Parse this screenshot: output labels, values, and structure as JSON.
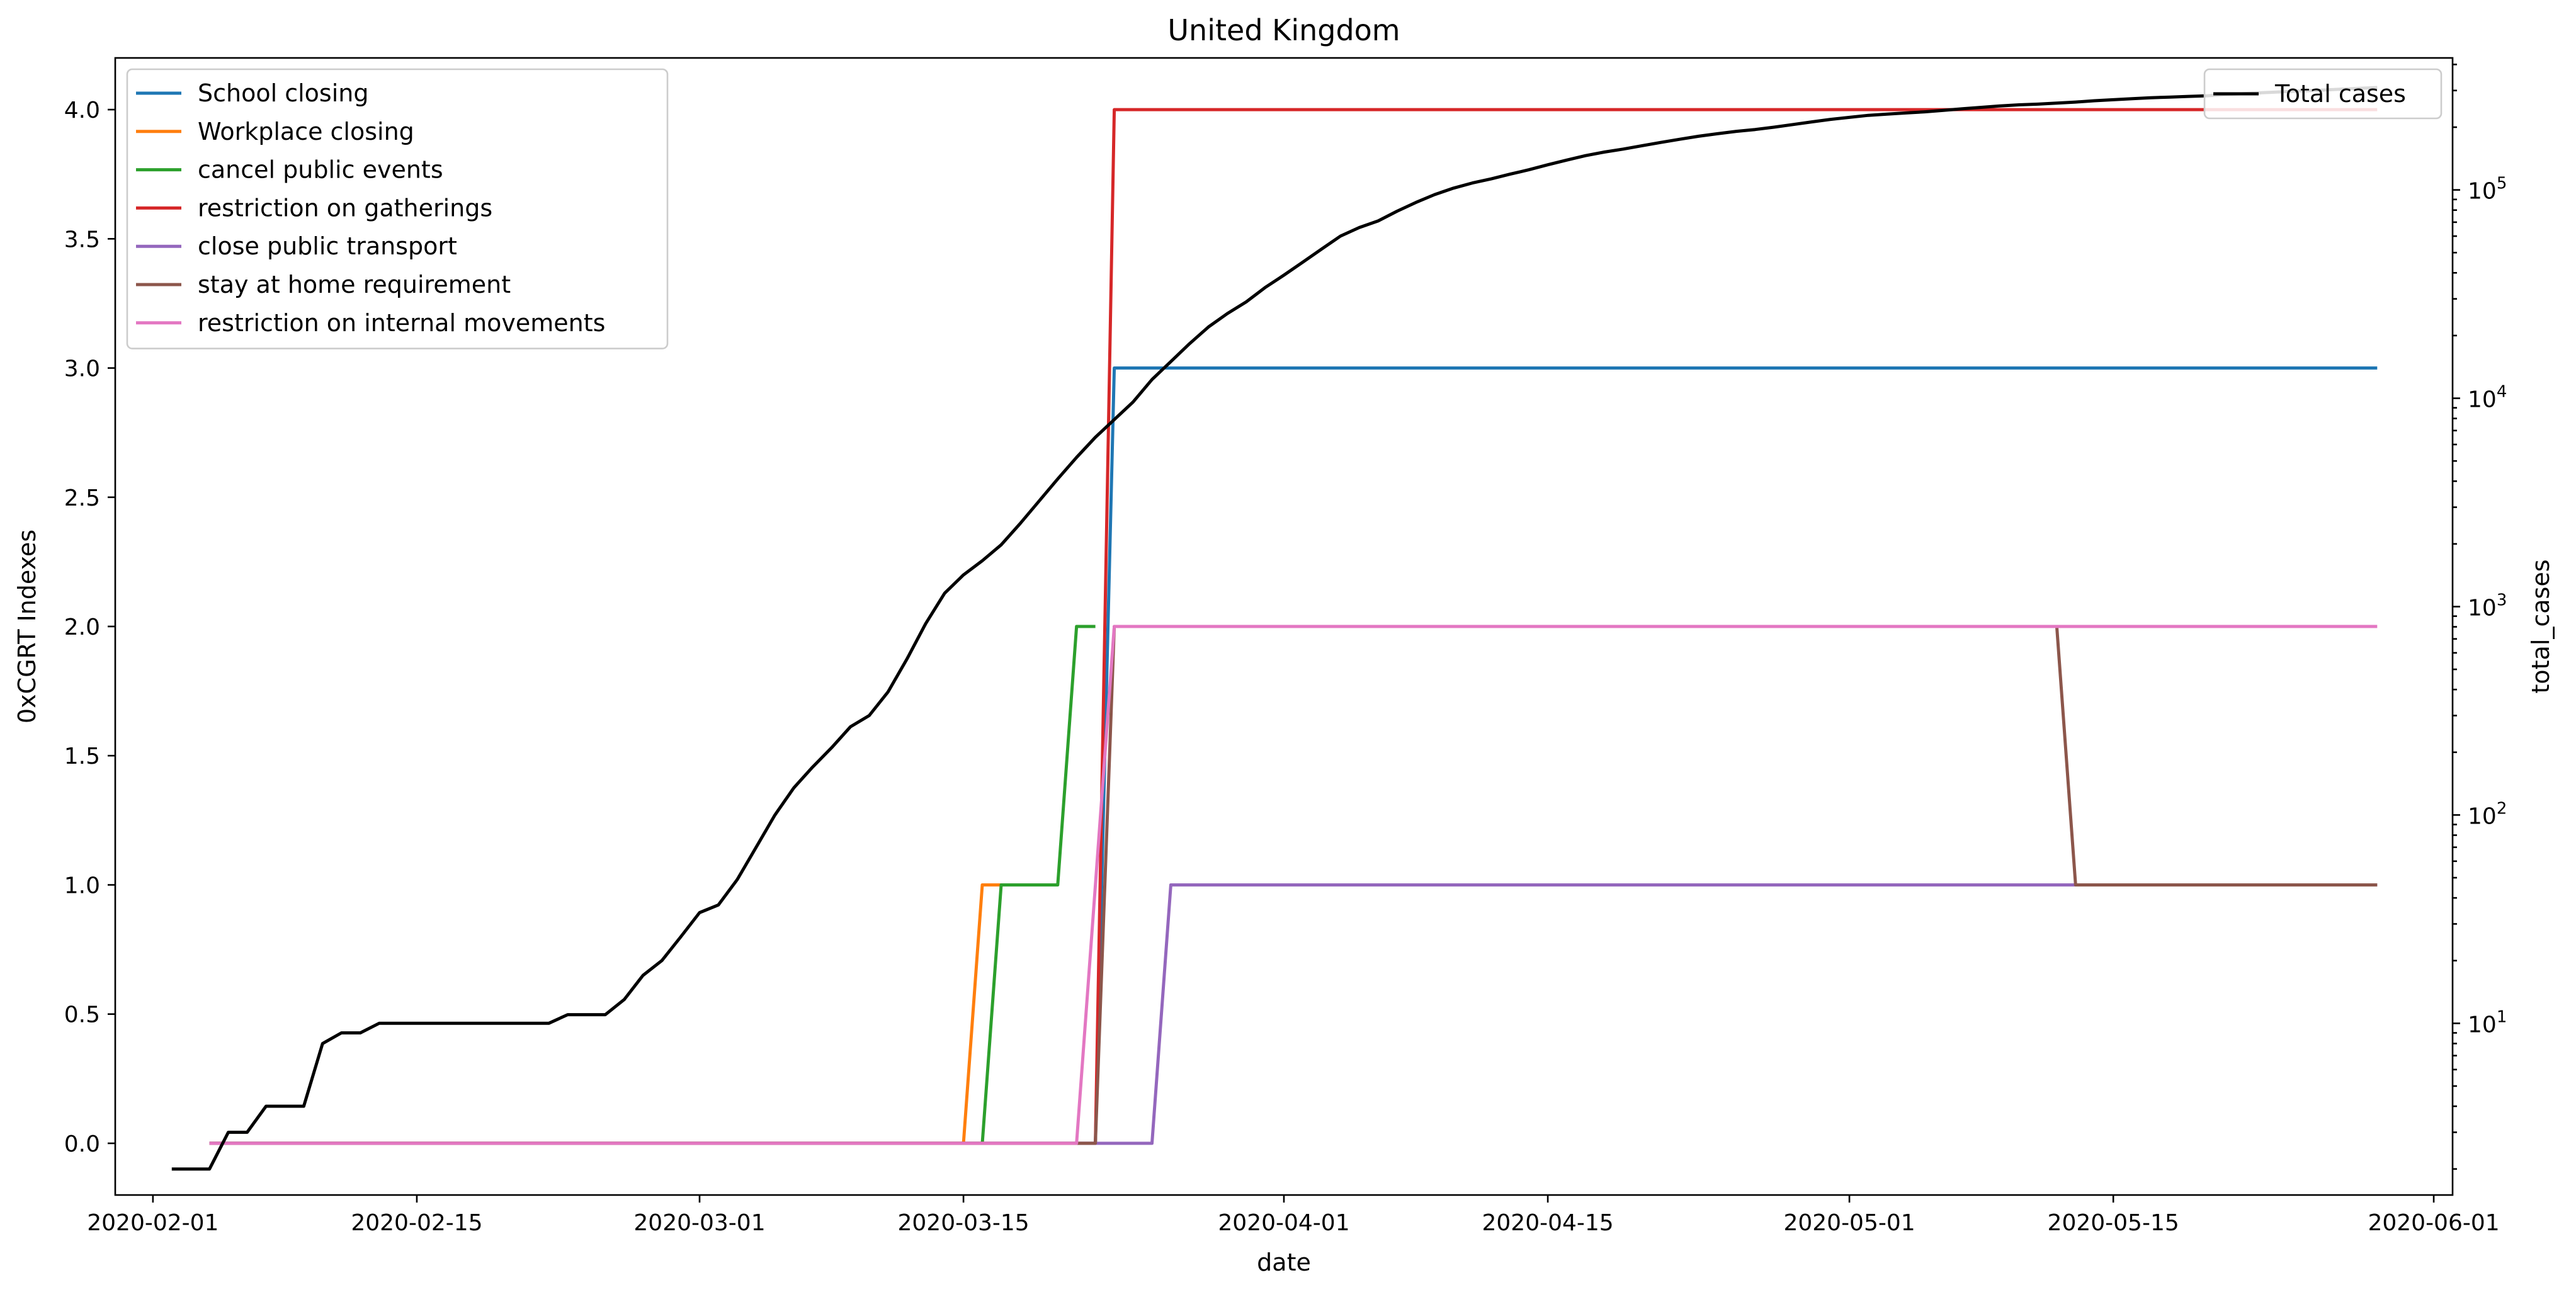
{
  "chart_data": {
    "type": "line",
    "title": "United Kingdom",
    "xlabel": "date",
    "ylabel": "0xCGRT Indexes",
    "y2label": "total_cases",
    "xlim": [
      "2020-01-30",
      "2020-06-02"
    ],
    "ylim": [
      -0.2,
      4.2
    ],
    "y2lim": [
      1.5,
      430000
    ],
    "y2_scale": "log",
    "x_ticks": [
      "2020-02-01",
      "2020-02-15",
      "2020-03-01",
      "2020-03-15",
      "2020-04-01",
      "2020-04-15",
      "2020-05-01",
      "2020-05-15",
      "2020-06-01"
    ],
    "y_ticks": [
      0.0,
      0.5,
      1.0,
      1.5,
      2.0,
      2.5,
      3.0,
      3.5,
      4.0
    ],
    "y_tick_labels": [
      "0.0",
      "0.5",
      "1.0",
      "1.5",
      "2.0",
      "2.5",
      "3.0",
      "3.5",
      "4.0"
    ],
    "y2_ticks": [
      10,
      100,
      1000,
      10000,
      100000
    ],
    "y2_tick_labels": [
      [
        "10",
        "1"
      ],
      [
        "10",
        "2"
      ],
      [
        "10",
        "3"
      ],
      [
        "10",
        "4"
      ],
      [
        "10",
        "5"
      ]
    ],
    "grid": false,
    "legend_left_position": "upper-left",
    "legend_right_position": "upper-right",
    "series": [
      {
        "name": "School closing",
        "color": "#1f77b4",
        "axis": "left",
        "points": [
          [
            "2020-02-04",
            0
          ],
          [
            "2020-03-22",
            0
          ],
          [
            "2020-03-23",
            3
          ],
          [
            "2020-05-29",
            3
          ]
        ]
      },
      {
        "name": "Workplace closing",
        "color": "#ff7f0e",
        "axis": "left",
        "points": [
          [
            "2020-02-04",
            0
          ],
          [
            "2020-03-15",
            0
          ],
          [
            "2020-03-16",
            1
          ],
          [
            "2020-03-17",
            1
          ]
        ]
      },
      {
        "name": "cancel public events",
        "color": "#2ca02c",
        "axis": "left",
        "points": [
          [
            "2020-02-04",
            0
          ],
          [
            "2020-03-16",
            0
          ],
          [
            "2020-03-17",
            1
          ],
          [
            "2020-03-20",
            1
          ],
          [
            "2020-03-21",
            2
          ],
          [
            "2020-03-22",
            2
          ]
        ]
      },
      {
        "name": "restriction on gatherings",
        "color": "#d62728",
        "axis": "left",
        "points": [
          [
            "2020-02-04",
            0
          ],
          [
            "2020-03-22",
            0
          ],
          [
            "2020-03-23",
            4
          ],
          [
            "2020-05-29",
            4
          ]
        ]
      },
      {
        "name": "close public transport",
        "color": "#9467bd",
        "axis": "left",
        "points": [
          [
            "2020-02-04",
            0
          ],
          [
            "2020-03-25",
            0
          ],
          [
            "2020-03-26",
            1
          ],
          [
            "2020-05-29",
            1
          ]
        ]
      },
      {
        "name": "stay at home requirement",
        "color": "#8c564b",
        "axis": "left",
        "points": [
          [
            "2020-02-04",
            0
          ],
          [
            "2020-03-22",
            0
          ],
          [
            "2020-03-23",
            2
          ],
          [
            "2020-05-12",
            2
          ],
          [
            "2020-05-13",
            1
          ],
          [
            "2020-05-29",
            1
          ]
        ]
      },
      {
        "name": "restriction on internal movements",
        "color": "#e377c2",
        "axis": "left",
        "points": [
          [
            "2020-02-04",
            0
          ],
          [
            "2020-03-21",
            0
          ],
          [
            "2020-03-23",
            2
          ],
          [
            "2020-05-29",
            2
          ]
        ]
      },
      {
        "name": "Total cases",
        "color": "#000000",
        "axis": "right",
        "points": [
          [
            "2020-02-02",
            2
          ],
          [
            "2020-02-03",
            2
          ],
          [
            "2020-02-04",
            2
          ],
          [
            "2020-02-05",
            3
          ],
          [
            "2020-02-06",
            3
          ],
          [
            "2020-02-07",
            4
          ],
          [
            "2020-02-08",
            4
          ],
          [
            "2020-02-09",
            4
          ],
          [
            "2020-02-10",
            8
          ],
          [
            "2020-02-11",
            9
          ],
          [
            "2020-02-12",
            9
          ],
          [
            "2020-02-13",
            10
          ],
          [
            "2020-02-14",
            10
          ],
          [
            "2020-02-15",
            10
          ],
          [
            "2020-02-16",
            10
          ],
          [
            "2020-02-17",
            10
          ],
          [
            "2020-02-18",
            10
          ],
          [
            "2020-02-19",
            10
          ],
          [
            "2020-02-20",
            10
          ],
          [
            "2020-02-21",
            10
          ],
          [
            "2020-02-22",
            10
          ],
          [
            "2020-02-23",
            11
          ],
          [
            "2020-02-24",
            11
          ],
          [
            "2020-02-25",
            11
          ],
          [
            "2020-02-26",
            13
          ],
          [
            "2020-02-27",
            17
          ],
          [
            "2020-02-28",
            20
          ],
          [
            "2020-02-29",
            26
          ],
          [
            "2020-03-01",
            34
          ],
          [
            "2020-03-02",
            37
          ],
          [
            "2020-03-03",
            49
          ],
          [
            "2020-03-04",
            70
          ],
          [
            "2020-03-05",
            100
          ],
          [
            "2020-03-06",
            135
          ],
          [
            "2020-03-07",
            170
          ],
          [
            "2020-03-08",
            210
          ],
          [
            "2020-03-09",
            265
          ],
          [
            "2020-03-10",
            300
          ],
          [
            "2020-03-11",
            390
          ],
          [
            "2020-03-12",
            560
          ],
          [
            "2020-03-13",
            830
          ],
          [
            "2020-03-14",
            1160
          ],
          [
            "2020-03-15",
            1420
          ],
          [
            "2020-03-16",
            1660
          ],
          [
            "2020-03-17",
            1980
          ],
          [
            "2020-03-18",
            2500
          ],
          [
            "2020-03-19",
            3200
          ],
          [
            "2020-03-20",
            4100
          ],
          [
            "2020-03-21",
            5200
          ],
          [
            "2020-03-22",
            6500
          ],
          [
            "2020-03-23",
            7900
          ],
          [
            "2020-03-24",
            9600
          ],
          [
            "2020-03-25",
            12300
          ],
          [
            "2020-03-26",
            15000
          ],
          [
            "2020-03-27",
            18300
          ],
          [
            "2020-03-28",
            22000
          ],
          [
            "2020-03-29",
            25500
          ],
          [
            "2020-03-30",
            29000
          ],
          [
            "2020-03-31",
            34000
          ],
          [
            "2020-04-01",
            39000
          ],
          [
            "2020-04-02",
            45000
          ],
          [
            "2020-04-03",
            52000
          ],
          [
            "2020-04-04",
            60000
          ],
          [
            "2020-04-05",
            66000
          ],
          [
            "2020-04-06",
            71000
          ],
          [
            "2020-04-07",
            79000
          ],
          [
            "2020-04-08",
            87000
          ],
          [
            "2020-04-09",
            95000
          ],
          [
            "2020-04-10",
            102000
          ],
          [
            "2020-04-11",
            108000
          ],
          [
            "2020-04-12",
            113000
          ],
          [
            "2020-04-13",
            119000
          ],
          [
            "2020-04-14",
            125000
          ],
          [
            "2020-04-15",
            132000
          ],
          [
            "2020-04-16",
            139000
          ],
          [
            "2020-04-17",
            146000
          ],
          [
            "2020-04-18",
            152000
          ],
          [
            "2020-04-19",
            157000
          ],
          [
            "2020-04-20",
            163000
          ],
          [
            "2020-04-21",
            169000
          ],
          [
            "2020-04-22",
            175000
          ],
          [
            "2020-04-23",
            181000
          ],
          [
            "2020-04-24",
            186000
          ],
          [
            "2020-04-25",
            191000
          ],
          [
            "2020-04-26",
            195000
          ],
          [
            "2020-04-27",
            200000
          ],
          [
            "2020-04-28",
            206000
          ],
          [
            "2020-04-29",
            212000
          ],
          [
            "2020-04-30",
            218000
          ],
          [
            "2020-05-01",
            223000
          ],
          [
            "2020-05-02",
            228000
          ],
          [
            "2020-05-03",
            231000
          ],
          [
            "2020-05-04",
            234000
          ],
          [
            "2020-05-05",
            237000
          ],
          [
            "2020-05-06",
            241000
          ],
          [
            "2020-05-07",
            245000
          ],
          [
            "2020-05-08",
            249000
          ],
          [
            "2020-05-09",
            253000
          ],
          [
            "2020-05-10",
            256000
          ],
          [
            "2020-05-11",
            258000
          ],
          [
            "2020-05-12",
            261000
          ],
          [
            "2020-05-13",
            264000
          ],
          [
            "2020-05-14",
            268000
          ],
          [
            "2020-05-15",
            271000
          ],
          [
            "2020-05-16",
            274000
          ],
          [
            "2020-05-17",
            277000
          ],
          [
            "2020-05-18",
            279000
          ],
          [
            "2020-05-19",
            281000
          ],
          [
            "2020-05-20",
            283000
          ],
          [
            "2020-05-21",
            287000
          ],
          [
            "2020-05-22",
            290000
          ],
          [
            "2020-05-23",
            293000
          ],
          [
            "2020-05-24",
            296000
          ],
          [
            "2020-05-25",
            299000
          ],
          [
            "2020-05-26",
            301000
          ],
          [
            "2020-05-27",
            304000
          ],
          [
            "2020-05-28",
            307000
          ],
          [
            "2020-05-29",
            310000
          ]
        ]
      }
    ]
  }
}
